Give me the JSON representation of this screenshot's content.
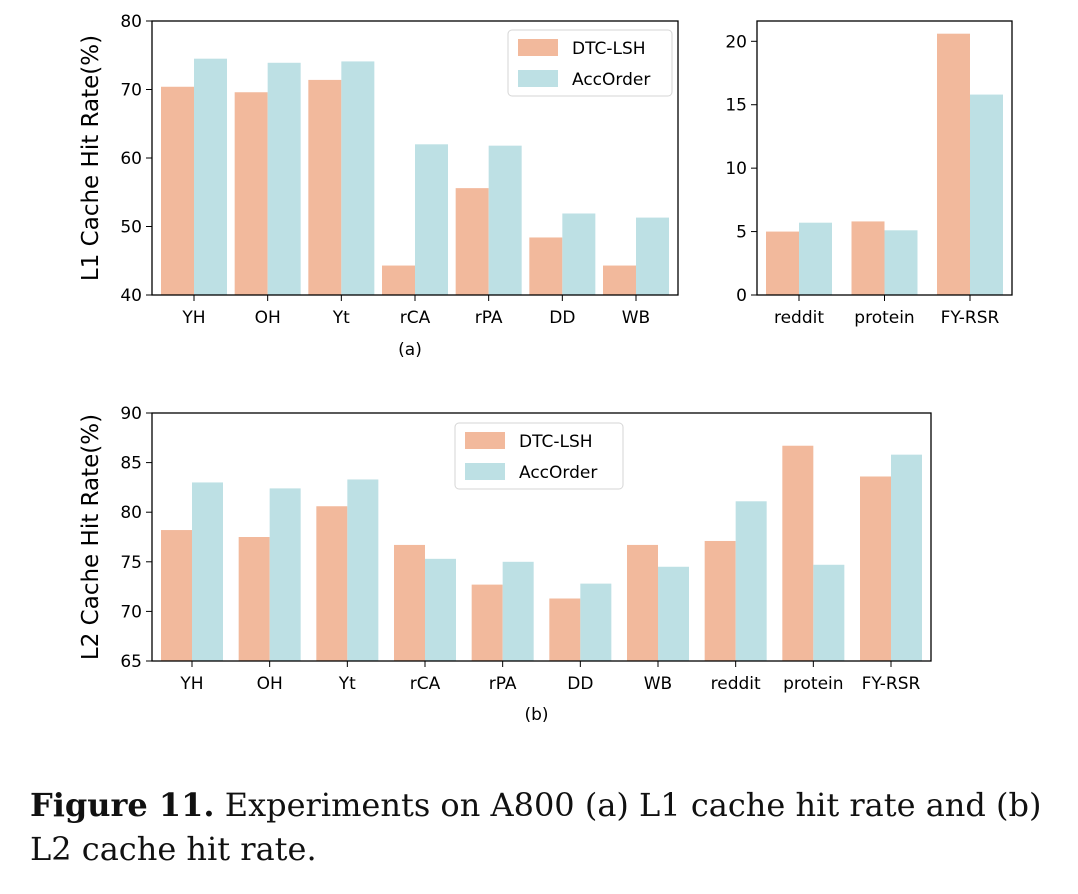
{
  "colors": {
    "dtc_lsh": "#f2b99c",
    "accorder": "#bde0e4"
  },
  "caption": {
    "label": "Figure 11.",
    "text": " Experiments on A800 (a) L1 cache hit rate and (b) L2 cache hit rate."
  },
  "chart_data": [
    {
      "type": "bar",
      "categories": [
        "YH",
        "OH",
        "Yt",
        "rCA",
        "rPA",
        "DD",
        "WB"
      ],
      "series": [
        {
          "name": "DTC-LSH",
          "values": [
            70.4,
            69.6,
            71.4,
            44.3,
            55.6,
            48.4,
            44.3
          ]
        },
        {
          "name": "AccOrder",
          "values": [
            74.5,
            73.9,
            74.1,
            62.0,
            61.8,
            51.9,
            51.3
          ]
        }
      ],
      "ylabel": "L1 Cache Hit Rate(%)",
      "ylim": [
        40,
        80
      ],
      "yticks": [
        40,
        50,
        60,
        70,
        80
      ],
      "xlabel": "(a)",
      "legend": "top-right",
      "grid": false
    },
    {
      "type": "bar",
      "categories": [
        "reddit",
        "protein",
        "FY-RSR"
      ],
      "series": [
        {
          "name": "DTC-LSH",
          "values": [
            5.0,
            5.8,
            20.6
          ]
        },
        {
          "name": "AccOrder",
          "values": [
            5.7,
            5.1,
            15.8
          ]
        }
      ],
      "ylabel": "",
      "ylim": [
        0,
        21.6
      ],
      "yticks": [
        0,
        5,
        10,
        15,
        20
      ],
      "xlabel": "",
      "grid": false
    },
    {
      "type": "bar",
      "categories": [
        "YH",
        "OH",
        "Yt",
        "rCA",
        "rPA",
        "DD",
        "WB",
        "reddit",
        "protein",
        "FY-RSR"
      ],
      "series": [
        {
          "name": "DTC-LSH",
          "values": [
            78.2,
            77.5,
            80.6,
            76.7,
            72.7,
            71.3,
            76.7,
            77.1,
            86.7,
            83.6
          ]
        },
        {
          "name": "AccOrder",
          "values": [
            83.0,
            82.4,
            83.3,
            75.3,
            75.0,
            72.8,
            74.5,
            81.1,
            74.7,
            85.8
          ]
        }
      ],
      "ylabel": "L2 Cache Hit Rate(%)",
      "ylim": [
        65,
        90
      ],
      "yticks": [
        65,
        70,
        75,
        80,
        85,
        90
      ],
      "xlabel": "(b)",
      "legend": "top-center",
      "grid": false
    }
  ]
}
